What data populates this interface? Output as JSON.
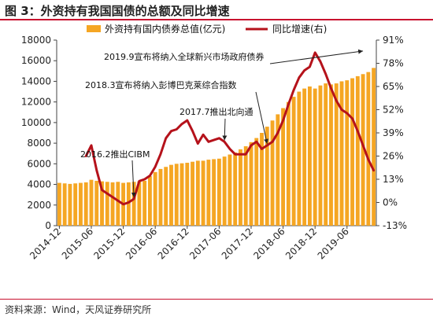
{
  "figure": {
    "title": "图 3：外资持有我国国债的总额及同比增速",
    "source": "资料来源：Wind，天风证券研究所"
  },
  "colors": {
    "bar": "#f5a623",
    "line": "#b5121b",
    "accent": "#c8102e",
    "axis": "#444444"
  },
  "chart_data": {
    "type": "bar+line",
    "legend": [
      {
        "name": "外资持有国内债券总值(亿元)",
        "kind": "bar"
      },
      {
        "name": "同比增速(右)",
        "kind": "line"
      }
    ],
    "legend_position": "top",
    "x_tick_labels": [
      "2014-12",
      "2015-06",
      "2015-12",
      "2016-06",
      "2016-12",
      "2017-06",
      "2017-12",
      "2018-06",
      "2018-12",
      "2019-06"
    ],
    "y_left": {
      "min": 0,
      "max": 18000,
      "ticks": [
        "0",
        "2000",
        "4000",
        "6000",
        "8000",
        "10000",
        "12000",
        "14000",
        "16000",
        "18000"
      ]
    },
    "y_right": {
      "min": -13,
      "max": 91,
      "ticks": [
        "-13%",
        "0%",
        "13%",
        "26%",
        "39%",
        "52%",
        "65%",
        "78%",
        "91%"
      ]
    },
    "grid": false,
    "months": [
      "2014-12",
      "2015-01",
      "2015-02",
      "2015-03",
      "2015-04",
      "2015-05",
      "2015-06",
      "2015-07",
      "2015-08",
      "2015-09",
      "2015-10",
      "2015-11",
      "2015-12",
      "2016-01",
      "2016-02",
      "2016-03",
      "2016-04",
      "2016-05",
      "2016-06",
      "2016-07",
      "2016-08",
      "2016-09",
      "2016-10",
      "2016-11",
      "2016-12",
      "2017-01",
      "2017-02",
      "2017-03",
      "2017-04",
      "2017-05",
      "2017-06",
      "2017-07",
      "2017-08",
      "2017-09",
      "2017-10",
      "2017-11",
      "2017-12",
      "2018-01",
      "2018-02",
      "2018-03",
      "2018-04",
      "2018-05",
      "2018-06",
      "2018-07",
      "2018-08",
      "2018-09",
      "2018-10",
      "2018-11",
      "2018-12",
      "2019-01",
      "2019-02",
      "2019-03",
      "2019-04",
      "2019-05",
      "2019-06",
      "2019-07",
      "2019-08",
      "2019-09",
      "2019-10",
      "2019-11"
    ],
    "bar_values": [
      4150,
      4100,
      4050,
      4100,
      4150,
      4200,
      4450,
      4350,
      4300,
      4250,
      4200,
      4250,
      4150,
      4200,
      4250,
      4300,
      4350,
      4800,
      5200,
      5500,
      5700,
      5900,
      6000,
      6050,
      6100,
      6200,
      6300,
      6300,
      6400,
      6450,
      6500,
      6700,
      6900,
      7100,
      7400,
      7700,
      8100,
      8500,
      9000,
      9600,
      10200,
      10800,
      11400,
      12000,
      12500,
      13000,
      13300,
      13500,
      13300,
      13600,
      13800,
      13700,
      13800,
      14000,
      14100,
      14300,
      14500,
      14700,
      14900,
      15300
    ],
    "line_values": [
      null,
      null,
      null,
      null,
      null,
      26,
      32,
      18,
      7,
      5,
      3,
      1,
      -1,
      0,
      2,
      12,
      13,
      15,
      20,
      27,
      36,
      40,
      41,
      44,
      46,
      40,
      33,
      38,
      34,
      35,
      36,
      34,
      30,
      27,
      27,
      27,
      32,
      34,
      30,
      32,
      34,
      39,
      46,
      55,
      63,
      70,
      74,
      76,
      84,
      79,
      72,
      64,
      57,
      52,
      50,
      47,
      40,
      32,
      24,
      18
    ]
  },
  "annotations": [
    {
      "text": "2016.2推出CIBM",
      "month": "2016-02",
      "value": 2
    },
    {
      "text": "2017.7推出北向通",
      "month": "2017-07",
      "value": 34
    },
    {
      "text": "2018.3宣布将纳入彭博巴克莱综合指数",
      "month": "2018-03",
      "value": 32
    },
    {
      "text": "2019.9宣布将纳入全球新兴市场政府债券",
      "month": "2019-09",
      "value": 84
    }
  ]
}
